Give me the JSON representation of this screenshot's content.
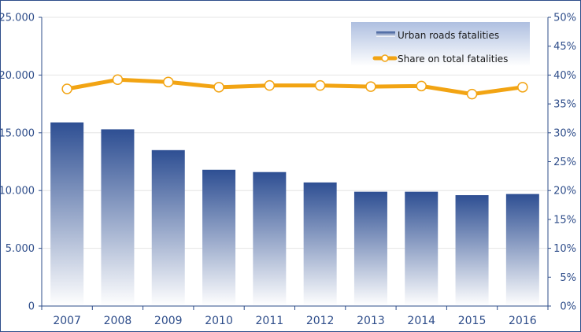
{
  "chart_data": {
    "type": "bar",
    "categories": [
      "2007",
      "2008",
      "2009",
      "2010",
      "2011",
      "2012",
      "2013",
      "2014",
      "2015",
      "2016"
    ],
    "series": [
      {
        "name": "Urban roads fatalities",
        "type": "bar",
        "axis": "left",
        "values": [
          15900,
          15300,
          13500,
          11800,
          11600,
          10700,
          9900,
          9900,
          9600,
          9700
        ]
      },
      {
        "name": "Share on total fatalities",
        "type": "line",
        "axis": "right",
        "unit": "%",
        "values": [
          37.6,
          39.2,
          38.8,
          37.9,
          38.2,
          38.2,
          38.0,
          38.1,
          36.7,
          37.9
        ]
      }
    ],
    "y_left": {
      "ylim": [
        0,
        25000
      ],
      "ticks": [
        "0",
        "5.000",
        "10.000",
        "15.000",
        "20.000",
        "25.000"
      ]
    },
    "y_right": {
      "ylim": [
        0,
        50
      ],
      "ticks": [
        "0%",
        "5%",
        "10%",
        "15%",
        "20%",
        "25%",
        "30%",
        "35%",
        "40%",
        "45%",
        "50%"
      ]
    },
    "grid": true,
    "legend_position": "top-right",
    "colors": {
      "bar_top": "#2e4f93",
      "bar_bottom": "#ffffff",
      "line": "#f2a413",
      "axis": "#2e4d8a",
      "frame": "#2e4d8a",
      "grid": "#e4e4e4"
    }
  }
}
